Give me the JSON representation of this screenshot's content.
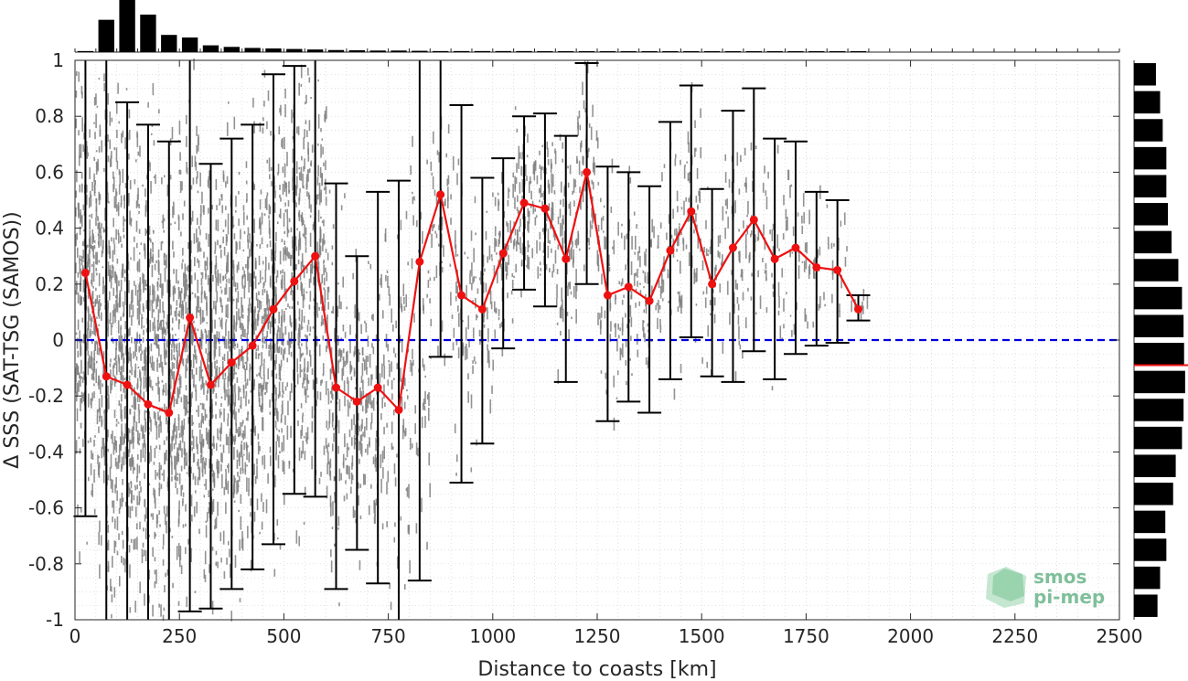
{
  "chart_data": {
    "type": "scatter",
    "title": "",
    "xlabel": "Distance to coasts [km]",
    "ylabel": "Δ SSS (SAT-TSG (SAMOS))",
    "xlim": [
      0,
      2500
    ],
    "ylim": [
      -1,
      1
    ],
    "x_ticks": [
      "0",
      "250",
      "500",
      "750",
      "1000",
      "1250",
      "1500",
      "1750",
      "2000",
      "2250",
      "2500"
    ],
    "y_ticks": [
      "-1",
      "-0.8",
      "-0.6",
      "-0.4",
      "-0.2",
      "0",
      "0.2",
      "0.4",
      "0.6",
      "0.8",
      "1"
    ],
    "grid": true,
    "reference_line": {
      "y": 0,
      "style": "dashed",
      "color": "#0000dd"
    },
    "mean_series": {
      "color": "#ee1111",
      "x": [
        25,
        75,
        125,
        175,
        225,
        275,
        325,
        375,
        425,
        475,
        525,
        575,
        625,
        675,
        725,
        775,
        825,
        875,
        925,
        975,
        1025,
        1075,
        1125,
        1175,
        1225,
        1275,
        1325,
        1375,
        1425,
        1475,
        1525,
        1575,
        1625,
        1675,
        1725,
        1775,
        1825,
        1875
      ],
      "y": [
        0.24,
        -0.13,
        -0.16,
        -0.23,
        -0.26,
        0.08,
        -0.16,
        -0.08,
        -0.02,
        0.11,
        0.21,
        0.3,
        -0.17,
        -0.22,
        -0.17,
        -0.25,
        0.28,
        0.52,
        0.16,
        0.11,
        0.31,
        0.49,
        0.47,
        0.29,
        0.6,
        0.16,
        0.19,
        0.14,
        0.32,
        0.46,
        0.2,
        0.33,
        0.43,
        0.29,
        0.33,
        0.26,
        0.25,
        0.11
      ]
    },
    "error_bars": {
      "color": "#000000",
      "lower": [
        -0.63,
        -1.3,
        -1.5,
        -1.4,
        -1.3,
        -0.97,
        -0.96,
        -0.89,
        -0.82,
        -0.73,
        -0.55,
        -0.56,
        -0.89,
        -0.75,
        -0.87,
        -1.1,
        -0.86,
        -0.06,
        -0.51,
        -0.37,
        -0.03,
        0.18,
        0.12,
        -0.15,
        0.2,
        -0.29,
        -0.22,
        -0.26,
        -0.14,
        0.01,
        -0.13,
        -0.15,
        -0.04,
        -0.14,
        -0.05,
        -0.02,
        -0.01,
        0.07
      ],
      "upper": [
        1.1,
        1.3,
        0.85,
        0.77,
        0.71,
        1.15,
        0.63,
        0.72,
        0.77,
        0.95,
        0.98,
        1.05,
        0.56,
        0.3,
        0.53,
        0.57,
        1.4,
        1.1,
        0.84,
        0.58,
        0.65,
        0.8,
        0.81,
        0.73,
        0.99,
        0.62,
        0.6,
        0.55,
        0.78,
        0.91,
        0.54,
        0.82,
        0.9,
        0.72,
        0.71,
        0.53,
        0.5,
        0.16
      ]
    },
    "scatter_color": "#808080",
    "scatter_density_by_bin": [
      1.0,
      1.0,
      1.0,
      1.0,
      0.95,
      0.9,
      0.9,
      0.88,
      0.85,
      0.82,
      0.78,
      0.7,
      0.45,
      0.38,
      0.3,
      0.25,
      0.2,
      0.18,
      0.18,
      0.2,
      0.25,
      0.3,
      0.3,
      0.28,
      0.25,
      0.2,
      0.22,
      0.18,
      0.2,
      0.2,
      0.15,
      0.18,
      0.15,
      0.12,
      0.12,
      0.08,
      0.06,
      0.03
    ],
    "top_histogram": {
      "x": [
        25,
        75,
        125,
        175,
        225,
        275,
        325,
        375,
        425,
        475,
        525,
        575,
        625,
        675,
        725,
        775,
        825,
        875,
        925,
        975,
        1025,
        1075,
        1125,
        1175,
        1225,
        1275,
        1325,
        1375,
        1425,
        1475,
        1525,
        1575,
        1625,
        1675,
        1725,
        1775,
        1825,
        1875
      ],
      "counts": [
        0.02,
        0.62,
        1.0,
        0.72,
        0.33,
        0.28,
        0.13,
        0.1,
        0.08,
        0.07,
        0.06,
        0.05,
        0.04,
        0.035,
        0.03,
        0.03,
        0.025,
        0.02,
        0.02,
        0.02,
        0.02,
        0.02,
        0.015,
        0.015,
        0.015,
        0.015,
        0.015,
        0.015,
        0.01,
        0.01,
        0.01,
        0.01,
        0.01,
        0.01,
        0.01,
        0.01,
        0.01,
        0.005
      ]
    },
    "right_histogram": {
      "y": [
        -0.95,
        -0.85,
        -0.75,
        -0.65,
        -0.55,
        -0.45,
        -0.35,
        -0.25,
        -0.15,
        -0.05,
        0.05,
        0.15,
        0.25,
        0.35,
        0.45,
        0.55,
        0.65,
        0.75,
        0.85,
        0.95
      ],
      "counts": [
        0.45,
        0.5,
        0.62,
        0.6,
        0.75,
        0.8,
        0.92,
        0.95,
        0.98,
        0.96,
        0.95,
        0.92,
        0.85,
        0.72,
        0.65,
        0.62,
        0.62,
        0.55,
        0.5,
        0.42
      ],
      "mean_marker_y": -0.09,
      "mean_marker_color": "#ee1111"
    }
  },
  "logo": {
    "line1": "smos",
    "line2": "pi-mep"
  }
}
